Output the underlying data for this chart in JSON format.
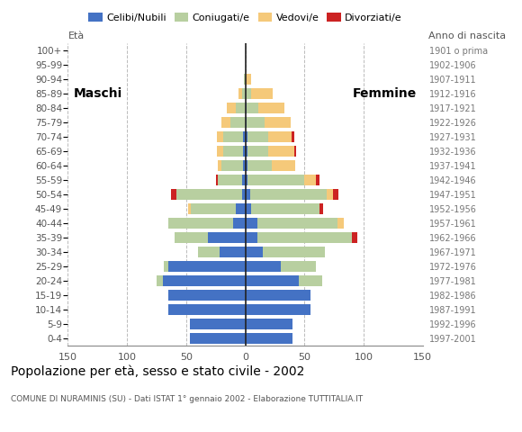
{
  "age_groups": [
    "0-4",
    "5-9",
    "10-14",
    "15-19",
    "20-24",
    "25-29",
    "30-34",
    "35-39",
    "40-44",
    "45-49",
    "50-54",
    "55-59",
    "60-64",
    "65-69",
    "70-74",
    "75-79",
    "80-84",
    "85-89",
    "90-94",
    "95-99",
    "100+"
  ],
  "birth_years": [
    "1997-2001",
    "1992-1996",
    "1987-1991",
    "1982-1986",
    "1977-1981",
    "1972-1976",
    "1967-1971",
    "1962-1966",
    "1957-1961",
    "1952-1956",
    "1947-1951",
    "1942-1946",
    "1937-1941",
    "1932-1936",
    "1927-1931",
    "1922-1926",
    "1917-1921",
    "1912-1916",
    "1907-1911",
    "1902-1906",
    "1901 o prima"
  ],
  "males": {
    "celibi": [
      47,
      47,
      65,
      65,
      70,
      65,
      22,
      32,
      10,
      8,
      3,
      3,
      2,
      2,
      2,
      0,
      0,
      0,
      0,
      0,
      0
    ],
    "coniugati": [
      0,
      0,
      0,
      0,
      5,
      4,
      18,
      28,
      55,
      38,
      55,
      20,
      18,
      17,
      17,
      13,
      8,
      3,
      1,
      0,
      0
    ],
    "vedovi": [
      0,
      0,
      0,
      0,
      0,
      0,
      0,
      0,
      0,
      2,
      0,
      0,
      3,
      5,
      5,
      7,
      8,
      3,
      0,
      0,
      0
    ],
    "divorziati": [
      0,
      0,
      0,
      0,
      0,
      0,
      0,
      0,
      0,
      0,
      5,
      2,
      0,
      0,
      0,
      0,
      0,
      0,
      0,
      0,
      0
    ]
  },
  "females": {
    "nubili": [
      40,
      40,
      55,
      55,
      45,
      30,
      15,
      10,
      10,
      5,
      4,
      2,
      2,
      2,
      2,
      1,
      1,
      0,
      0,
      0,
      0
    ],
    "coniugate": [
      0,
      0,
      0,
      0,
      20,
      30,
      52,
      80,
      68,
      58,
      65,
      48,
      20,
      17,
      17,
      15,
      10,
      5,
      0,
      0,
      0
    ],
    "vedove": [
      0,
      0,
      0,
      0,
      0,
      0,
      0,
      0,
      5,
      0,
      5,
      10,
      20,
      22,
      20,
      22,
      22,
      18,
      5,
      0,
      0
    ],
    "divorziate": [
      0,
      0,
      0,
      0,
      0,
      0,
      0,
      5,
      0,
      3,
      5,
      3,
      0,
      2,
      2,
      0,
      0,
      0,
      0,
      0,
      0
    ]
  },
  "colors": {
    "celibi": "#4472c4",
    "coniugati": "#b8cfa0",
    "vedovi": "#f5c97a",
    "divorziati": "#cc2222"
  },
  "xlim": 150,
  "title": "Popolazione per età, sesso e stato civile - 2002",
  "subtitle": "COMUNE DI NURAMINIS (SU) - Dati ISTAT 1° gennaio 2002 - Elaborazione TUTTITALIA.IT",
  "legend_labels": [
    "Celibi/Nubili",
    "Coniugati/e",
    "Vedovi/e",
    "Divorziati/e"
  ],
  "label_eta": "Età",
  "label_anno": "Anno di nascita",
  "label_maschi": "Maschi",
  "label_femmine": "Femmine"
}
